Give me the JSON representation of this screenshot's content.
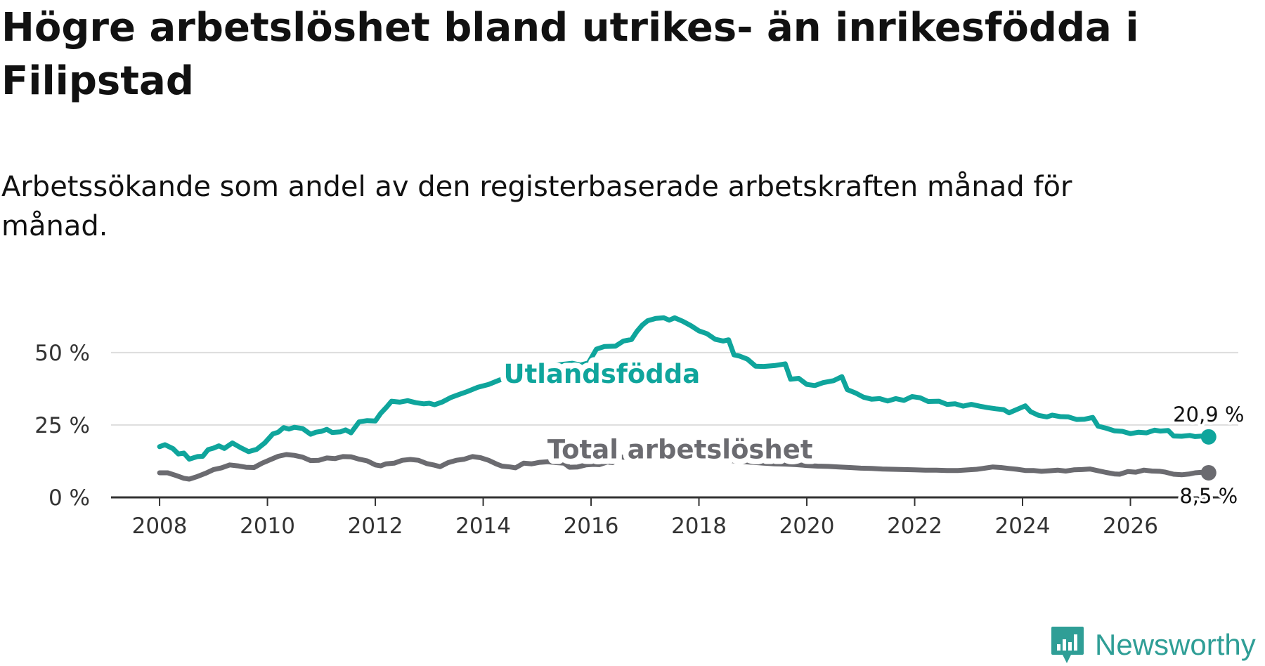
{
  "title": "Högre arbetslöshet bland utrikes- än inrikesfödda i Filipstad",
  "subtitle": "Arbetssökande som andel av den registerbaserade arbetskraften månad för månad.",
  "logo": {
    "text": "Newsworthy",
    "icon": "newsworthy-logo-icon",
    "color": "#2f9e96"
  },
  "chart_data": {
    "type": "line",
    "x_ticks": [
      "2008",
      "2010",
      "2012",
      "2014",
      "2016",
      "2018",
      "2020",
      "2022",
      "2024",
      "2026"
    ],
    "x_tick_values": [
      2008,
      2010,
      2012,
      2014,
      2016,
      2018,
      2020,
      2022,
      2024,
      2026
    ],
    "y_ticks": [
      "0 %",
      "25 %",
      "50 %"
    ],
    "y_tick_values": [
      0,
      25,
      50
    ],
    "xlim": [
      2007.1,
      2028.0
    ],
    "ylim": [
      0,
      65
    ],
    "grid": true,
    "series": [
      {
        "name": "Utlandsfödda",
        "color": "#0fa59c",
        "end_label": "20,9 %",
        "points": [
          [
            2008.0,
            17.5
          ],
          [
            2008.1,
            18.2
          ],
          [
            2008.25,
            16.8
          ],
          [
            2008.35,
            15
          ],
          [
            2008.45,
            15.3
          ],
          [
            2008.55,
            13.2
          ],
          [
            2008.7,
            14.1
          ],
          [
            2008.8,
            14.2
          ],
          [
            2008.9,
            16.5
          ],
          [
            2009.0,
            17.0
          ],
          [
            2009.1,
            17.8
          ],
          [
            2009.2,
            16.9
          ],
          [
            2009.35,
            18.8
          ],
          [
            2009.5,
            17.2
          ],
          [
            2009.65,
            15.8
          ],
          [
            2009.8,
            16.6
          ],
          [
            2009.95,
            18.8
          ],
          [
            2010.1,
            21.9
          ],
          [
            2010.2,
            22.5
          ],
          [
            2010.3,
            24.1
          ],
          [
            2010.4,
            23.6
          ],
          [
            2010.5,
            24.2
          ],
          [
            2010.65,
            23.8
          ],
          [
            2010.8,
            21.8
          ],
          [
            2010.9,
            22.5
          ],
          [
            2011.0,
            22.8
          ],
          [
            2011.1,
            23.5
          ],
          [
            2011.2,
            22.4
          ],
          [
            2011.35,
            22.6
          ],
          [
            2011.45,
            23.3
          ],
          [
            2011.55,
            22.3
          ],
          [
            2011.7,
            26.1
          ],
          [
            2011.85,
            26.5
          ],
          [
            2012.0,
            26.4
          ],
          [
            2012.1,
            29.0
          ],
          [
            2012.2,
            31.0
          ],
          [
            2012.3,
            33.2
          ],
          [
            2012.45,
            32.9
          ],
          [
            2012.6,
            33.4
          ],
          [
            2012.75,
            32.7
          ],
          [
            2012.9,
            32.3
          ],
          [
            2013.0,
            32.5
          ],
          [
            2013.1,
            32.0
          ],
          [
            2013.25,
            33.0
          ],
          [
            2013.4,
            34.5
          ],
          [
            2013.55,
            35.5
          ],
          [
            2013.7,
            36.5
          ],
          [
            2013.9,
            38.0
          ],
          [
            2014.1,
            39.0
          ],
          [
            2014.3,
            40.5
          ],
          [
            2014.5,
            41.5
          ],
          [
            2014.7,
            42.5
          ],
          [
            2014.9,
            43.5
          ],
          [
            2015.1,
            44.5
          ],
          [
            2015.3,
            45.5
          ],
          [
            2015.5,
            46.0
          ],
          [
            2015.65,
            46.3
          ],
          [
            2015.8,
            45.7
          ],
          [
            2015.95,
            46.4
          ],
          [
            2016.1,
            51.2
          ],
          [
            2016.25,
            52.1
          ],
          [
            2016.45,
            52.2
          ],
          [
            2016.6,
            54.0
          ],
          [
            2016.75,
            54.5
          ],
          [
            2016.85,
            57.3
          ],
          [
            2016.95,
            59.5
          ],
          [
            2017.05,
            61.0
          ],
          [
            2017.2,
            61.8
          ],
          [
            2017.35,
            62.0
          ],
          [
            2017.45,
            61.2
          ],
          [
            2017.55,
            62.0
          ],
          [
            2017.7,
            60.8
          ],
          [
            2017.85,
            59.3
          ],
          [
            2018.0,
            57.5
          ],
          [
            2018.15,
            56.5
          ],
          [
            2018.3,
            54.6
          ],
          [
            2018.45,
            54.0
          ],
          [
            2018.55,
            54.4
          ],
          [
            2018.65,
            49.2
          ],
          [
            2018.75,
            48.8
          ],
          [
            2018.9,
            47.7
          ],
          [
            2019.05,
            45.3
          ],
          [
            2019.2,
            45.2
          ],
          [
            2019.4,
            45.5
          ],
          [
            2019.6,
            46.1
          ],
          [
            2019.7,
            40.8
          ],
          [
            2019.85,
            41.1
          ],
          [
            2020.0,
            39.0
          ],
          [
            2020.15,
            38.6
          ],
          [
            2020.3,
            39.6
          ],
          [
            2020.5,
            40.3
          ],
          [
            2020.65,
            41.7
          ],
          [
            2020.75,
            37.2
          ],
          [
            2020.9,
            36.1
          ],
          [
            2021.05,
            34.6
          ],
          [
            2021.2,
            33.9
          ],
          [
            2021.35,
            34.1
          ],
          [
            2021.5,
            33.3
          ],
          [
            2021.65,
            34.1
          ],
          [
            2021.8,
            33.5
          ],
          [
            2021.95,
            34.8
          ],
          [
            2022.1,
            34.4
          ],
          [
            2022.25,
            33.1
          ],
          [
            2022.45,
            33.2
          ],
          [
            2022.6,
            32.1
          ],
          [
            2022.75,
            32.3
          ],
          [
            2022.9,
            31.5
          ],
          [
            2023.05,
            32.1
          ],
          [
            2023.2,
            31.5
          ],
          [
            2023.35,
            31.0
          ],
          [
            2023.5,
            30.6
          ],
          [
            2023.65,
            30.3
          ],
          [
            2023.75,
            29.2
          ],
          [
            2023.9,
            30.4
          ],
          [
            2024.05,
            31.6
          ],
          [
            2024.15,
            29.6
          ],
          [
            2024.3,
            28.3
          ],
          [
            2024.45,
            27.8
          ],
          [
            2024.55,
            28.4
          ],
          [
            2024.7,
            27.9
          ],
          [
            2024.85,
            27.8
          ],
          [
            2025.0,
            26.9
          ],
          [
            2025.15,
            27.0
          ],
          [
            2025.3,
            27.6
          ],
          [
            2025.4,
            24.6
          ],
          [
            2025.55,
            23.9
          ],
          [
            2025.7,
            23.0
          ],
          [
            2025.85,
            22.8
          ],
          [
            2026.0,
            22.0
          ],
          [
            2026.15,
            22.5
          ],
          [
            2026.3,
            22.3
          ],
          [
            2026.45,
            23.2
          ],
          [
            2026.55,
            22.9
          ],
          [
            2026.7,
            23.1
          ],
          [
            2026.8,
            21.2
          ],
          [
            2026.95,
            21.1
          ],
          [
            2027.1,
            21.4
          ],
          [
            2027.2,
            21.0
          ],
          [
            2027.35,
            21.2
          ],
          [
            2027.45,
            20.9
          ]
        ]
      },
      {
        "name": "Total arbetslöshet",
        "color": "#6b6b70",
        "end_label": "8,5 %",
        "points": [
          [
            2008.0,
            8.5
          ],
          [
            2008.15,
            8.5
          ],
          [
            2008.3,
            7.6
          ],
          [
            2008.45,
            6.6
          ],
          [
            2008.55,
            6.3
          ],
          [
            2008.7,
            7.2
          ],
          [
            2008.85,
            8.3
          ],
          [
            2009.0,
            9.6
          ],
          [
            2009.15,
            10.2
          ],
          [
            2009.3,
            11.2
          ],
          [
            2009.45,
            10.9
          ],
          [
            2009.6,
            10.4
          ],
          [
            2009.75,
            10.3
          ],
          [
            2009.9,
            11.8
          ],
          [
            2010.05,
            13.0
          ],
          [
            2010.2,
            14.2
          ],
          [
            2010.35,
            14.8
          ],
          [
            2010.5,
            14.5
          ],
          [
            2010.65,
            13.9
          ],
          [
            2010.8,
            12.7
          ],
          [
            2010.95,
            12.8
          ],
          [
            2011.1,
            13.6
          ],
          [
            2011.25,
            13.4
          ],
          [
            2011.4,
            14.1
          ],
          [
            2011.55,
            14.0
          ],
          [
            2011.7,
            13.2
          ],
          [
            2011.85,
            12.6
          ],
          [
            2012.0,
            11.2
          ],
          [
            2012.1,
            10.9
          ],
          [
            2012.2,
            11.6
          ],
          [
            2012.35,
            11.8
          ],
          [
            2012.5,
            12.8
          ],
          [
            2012.65,
            13.1
          ],
          [
            2012.8,
            12.8
          ],
          [
            2012.95,
            11.7
          ],
          [
            2013.1,
            11.1
          ],
          [
            2013.2,
            10.6
          ],
          [
            2013.35,
            12.0
          ],
          [
            2013.5,
            12.8
          ],
          [
            2013.65,
            13.2
          ],
          [
            2013.8,
            14.1
          ],
          [
            2013.95,
            13.7
          ],
          [
            2014.1,
            12.8
          ],
          [
            2014.25,
            11.5
          ],
          [
            2014.35,
            10.8
          ],
          [
            2014.5,
            10.5
          ],
          [
            2014.6,
            10.2
          ],
          [
            2014.75,
            11.8
          ],
          [
            2014.9,
            11.6
          ],
          [
            2015.05,
            12.1
          ],
          [
            2015.2,
            12.3
          ],
          [
            2015.35,
            12.0
          ],
          [
            2015.5,
            11.8
          ],
          [
            2015.6,
            10.4
          ],
          [
            2015.75,
            10.5
          ],
          [
            2015.9,
            11.2
          ],
          [
            2016.05,
            11.4
          ],
          [
            2016.15,
            11.3
          ],
          [
            2016.3,
            12.2
          ],
          [
            2016.4,
            12.0
          ],
          [
            2016.55,
            14.0
          ],
          [
            2016.7,
            13.6
          ],
          [
            2016.85,
            13.2
          ],
          [
            2017.0,
            12.9
          ],
          [
            2017.1,
            12.4
          ],
          [
            2017.25,
            13.8
          ],
          [
            2017.4,
            14.5
          ],
          [
            2017.55,
            15.3
          ],
          [
            2017.7,
            15.8
          ],
          [
            2017.85,
            16.0
          ],
          [
            2018.0,
            15.4
          ],
          [
            2018.1,
            14.2
          ],
          [
            2018.25,
            13.6
          ],
          [
            2018.4,
            13.2
          ],
          [
            2018.55,
            12.8
          ],
          [
            2018.7,
            12.5
          ],
          [
            2018.85,
            12.3
          ],
          [
            2019.0,
            12.1
          ],
          [
            2019.2,
            11.8
          ],
          [
            2019.4,
            11.6
          ],
          [
            2019.6,
            11.5
          ],
          [
            2019.8,
            11.3
          ],
          [
            2020.0,
            11.0
          ],
          [
            2020.2,
            10.8
          ],
          [
            2020.4,
            10.7
          ],
          [
            2020.6,
            10.5
          ],
          [
            2020.8,
            10.3
          ],
          [
            2021.0,
            10.1
          ],
          [
            2021.2,
            10.0
          ],
          [
            2021.4,
            9.8
          ],
          [
            2021.6,
            9.7
          ],
          [
            2021.8,
            9.6
          ],
          [
            2022.0,
            9.5
          ],
          [
            2022.2,
            9.4
          ],
          [
            2022.4,
            9.4
          ],
          [
            2022.6,
            9.3
          ],
          [
            2022.8,
            9.3
          ],
          [
            2023.0,
            9.5
          ],
          [
            2023.15,
            9.7
          ],
          [
            2023.3,
            10.1
          ],
          [
            2023.45,
            10.5
          ],
          [
            2023.6,
            10.3
          ],
          [
            2023.75,
            10.0
          ],
          [
            2023.9,
            9.7
          ],
          [
            2024.05,
            9.3
          ],
          [
            2024.2,
            9.3
          ],
          [
            2024.35,
            9.0
          ],
          [
            2024.5,
            9.2
          ],
          [
            2024.65,
            9.4
          ],
          [
            2024.8,
            9.1
          ],
          [
            2024.95,
            9.5
          ],
          [
            2025.1,
            9.6
          ],
          [
            2025.25,
            9.8
          ],
          [
            2025.4,
            9.2
          ],
          [
            2025.55,
            8.6
          ],
          [
            2025.7,
            8.1
          ],
          [
            2025.8,
            8.0
          ],
          [
            2025.95,
            8.9
          ],
          [
            2026.1,
            8.7
          ],
          [
            2026.25,
            9.4
          ],
          [
            2026.4,
            9.1
          ],
          [
            2026.55,
            9.0
          ],
          [
            2026.65,
            8.7
          ],
          [
            2026.8,
            8.0
          ],
          [
            2026.95,
            7.8
          ],
          [
            2027.1,
            8.1
          ],
          [
            2027.2,
            8.5
          ],
          [
            2027.35,
            8.7
          ],
          [
            2027.45,
            8.5
          ]
        ]
      }
    ],
    "series_labels": [
      {
        "text": "Utlandsfödda",
        "series": 0,
        "at": [
          2016.2,
          39.5
        ]
      },
      {
        "text": "Total arbetslöshet",
        "series": 1,
        "at": [
          2017.65,
          13.5
        ]
      }
    ]
  }
}
